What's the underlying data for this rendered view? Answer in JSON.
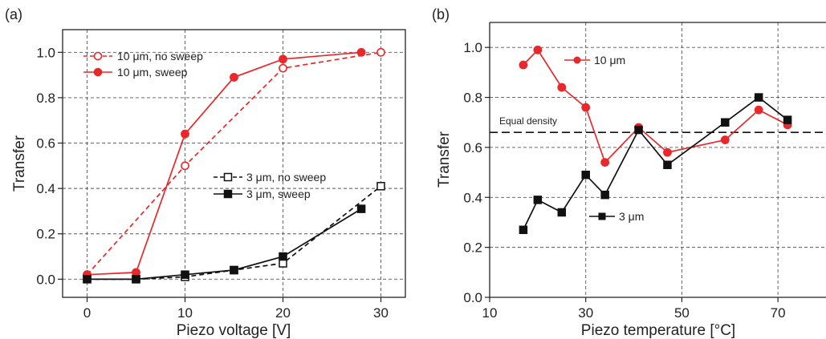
{
  "chart_data": [
    {
      "type": "line",
      "panel_label": "(a)",
      "xlabel": "Piezo voltage [V]",
      "ylabel": "Transfer",
      "xlim": [
        -2.5,
        32.5
      ],
      "ylim": [
        -0.08,
        1.1
      ],
      "xticks": [
        0,
        10,
        20,
        30
      ],
      "yticks": [
        0.0,
        0.2,
        0.4,
        0.6,
        0.8,
        1.0
      ],
      "xtick_labels": [
        "0",
        "10",
        "20",
        "30"
      ],
      "ytick_labels": [
        "0.0",
        "0.2",
        "0.4",
        "0.6",
        "0.8",
        "1.0"
      ],
      "grid": true,
      "legend_position": [
        "top-left",
        "middle-right"
      ],
      "series": [
        {
          "name": "10 μm, no sweep",
          "color": "#e8282a",
          "marker": "open-circle",
          "line": "dashed",
          "x": [
            0,
            10,
            20,
            30
          ],
          "y": [
            0.02,
            0.5,
            0.93,
            1.0
          ]
        },
        {
          "name": "10 μm, sweep",
          "color": "#e8282a",
          "marker": "filled-circle",
          "line": "solid",
          "x": [
            0,
            5,
            10,
            15,
            20,
            28
          ],
          "y": [
            0.02,
            0.03,
            0.64,
            0.89,
            0.97,
            1.0
          ]
        },
        {
          "name": "3 μm, no sweep",
          "color": "#111111",
          "marker": "open-square",
          "line": "dashed",
          "x": [
            0,
            5,
            10,
            15,
            20,
            30
          ],
          "y": [
            0.0,
            0.0,
            0.01,
            0.04,
            0.07,
            0.41
          ]
        },
        {
          "name": "3 μm, sweep",
          "color": "#111111",
          "marker": "filled-square",
          "line": "solid",
          "x": [
            0,
            5,
            10,
            15,
            20,
            28
          ],
          "y": [
            0.0,
            0.0,
            0.02,
            0.04,
            0.1,
            0.31
          ]
        }
      ]
    },
    {
      "type": "line",
      "panel_label": "(b)",
      "xlabel": "Piezo temperature [°C]",
      "ylabel": "Transfer",
      "xlim": [
        10,
        80
      ],
      "ylim": [
        0.0,
        1.1
      ],
      "xticks": [
        10,
        30,
        50,
        70
      ],
      "yticks": [
        0.0,
        0.2,
        0.4,
        0.6,
        0.8,
        1.0
      ],
      "xtick_labels": [
        "10",
        "30",
        "50",
        "70"
      ],
      "ytick_labels": [
        "0.0",
        "0.2",
        "0.4",
        "0.6",
        "0.8",
        "1.0"
      ],
      "grid": true,
      "annotation": {
        "text": "Equal density",
        "y": 0.66
      },
      "series": [
        {
          "name": "10 μm",
          "color": "#e8282a",
          "marker": "filled-circle",
          "line": "solid",
          "x": [
            17,
            20,
            25,
            30,
            34,
            41,
            47,
            59,
            66,
            72
          ],
          "y": [
            0.93,
            0.99,
            0.84,
            0.76,
            0.54,
            0.68,
            0.58,
            0.63,
            0.75,
            0.69
          ]
        },
        {
          "name": "3 μm",
          "color": "#111111",
          "marker": "filled-square",
          "line": "solid",
          "x": [
            17,
            20,
            25,
            30,
            34,
            41,
            47,
            59,
            66,
            72
          ],
          "y": [
            0.27,
            0.39,
            0.34,
            0.49,
            0.41,
            0.67,
            0.53,
            0.7,
            0.8,
            0.71
          ]
        }
      ]
    }
  ]
}
